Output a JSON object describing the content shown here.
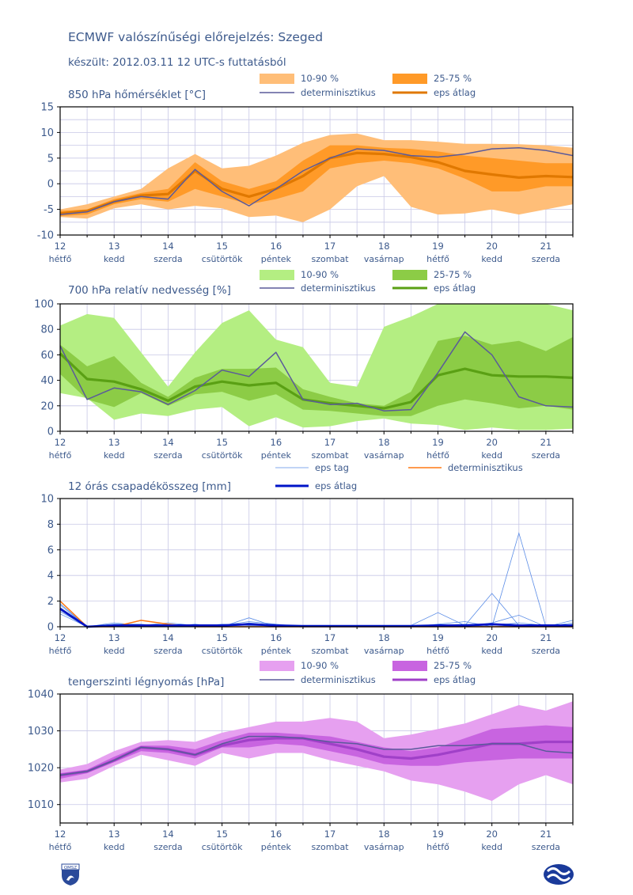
{
  "header": {
    "title": "ECMWF valószínűségi előrejelzés: Szeged",
    "subtitle": "készült: 2012.03.11 12 UTC-s futtatásból"
  },
  "colors": {
    "axis_text": "#3d5a8c",
    "grid": "#c8c8e6",
    "det_line": "#5a5a9a",
    "temp_outer": "#ffbe78",
    "temp_inner": "#ff9a28",
    "temp_mean": "#e07800",
    "hum_outer": "#b4ee82",
    "hum_inner": "#8ccc46",
    "hum_mean": "#5aa014",
    "precip_member": "#5a8ce6",
    "precip_det": "#ff7814",
    "precip_mean": "#0014c8",
    "press_outer": "#e6a0f0",
    "press_inner": "#c864e0",
    "press_mean": "#a040c8"
  },
  "x_axis": {
    "ticks": [
      "12",
      "13",
      "14",
      "15",
      "16",
      "17",
      "18",
      "19",
      "20",
      "21"
    ],
    "days": [
      "hétfő",
      "kedd",
      "szerda",
      "csütörtök",
      "péntek",
      "szombat",
      "vasárnap",
      "hétfő",
      "kedd",
      "szerda"
    ]
  },
  "chart_data": [
    {
      "type": "area",
      "title": "850 hPa hőmérséklet [°C]",
      "ylim": [
        -10,
        15
      ],
      "yticks": [
        -10,
        -5,
        0,
        5,
        10,
        15
      ],
      "grid": true,
      "legend": {
        "outer": "10-90 %",
        "inner": "25-75 %",
        "det": "determinisztikus",
        "mean": "eps átlag"
      },
      "x": [
        12,
        12.5,
        13,
        13.5,
        14,
        14.5,
        15,
        15.5,
        16,
        16.5,
        17,
        17.5,
        18,
        18.5,
        19,
        19.5,
        20,
        20.5,
        21,
        21.5
      ],
      "p10": [
        -6.5,
        -6.8,
        -4.8,
        -4.0,
        -5.0,
        -4.3,
        -4.8,
        -6.5,
        -6.2,
        -7.5,
        -5.0,
        -0.5,
        1.5,
        -4.5,
        -6.0,
        -5.8,
        -5.0,
        -6.0,
        -5.0,
        -4.0
      ],
      "p90": [
        -5.0,
        -4.0,
        -2.5,
        -1.0,
        3.0,
        5.8,
        3.0,
        3.5,
        5.5,
        8.0,
        9.5,
        9.8,
        8.5,
        8.5,
        8.2,
        7.8,
        7.8,
        7.7,
        7.5,
        7.0
      ],
      "p25": [
        -6.3,
        -6.0,
        -4.0,
        -3.0,
        -3.5,
        -1.0,
        -2.5,
        -4.0,
        -3.0,
        -1.5,
        3.0,
        4.0,
        4.5,
        4.0,
        3.0,
        1.0,
        -1.5,
        -1.5,
        -0.5,
        -0.5
      ],
      "p75": [
        -5.3,
        -5.0,
        -3.0,
        -1.8,
        -1.0,
        4.2,
        0.5,
        -1.0,
        0.5,
        4.5,
        7.5,
        7.5,
        7.0,
        6.8,
        6.3,
        5.5,
        5.0,
        4.5,
        4.0,
        4.0
      ],
      "det": [
        -6.0,
        -5.5,
        -3.5,
        -2.5,
        -3.0,
        2.8,
        -1.5,
        -4.3,
        -1.0,
        2.5,
        5.0,
        6.8,
        6.5,
        5.5,
        5.2,
        5.8,
        6.8,
        7.0,
        6.5,
        5.5
      ],
      "mean": [
        -5.8,
        -5.3,
        -3.5,
        -2.3,
        -2.0,
        2.5,
        -1.0,
        -2.5,
        -1.0,
        1.5,
        5.0,
        6.0,
        5.8,
        5.2,
        4.2,
        2.5,
        1.8,
        1.2,
        1.5,
        1.3
      ]
    },
    {
      "type": "area",
      "title": "700 hPa relatív nedvesség [%]",
      "ylim": [
        0,
        100
      ],
      "yticks": [
        0,
        20,
        40,
        60,
        80,
        100
      ],
      "grid": true,
      "legend": {
        "outer": "10-90 %",
        "inner": "25-75 %",
        "det": "determinisztikus",
        "mean": "eps átlag"
      },
      "x": [
        12,
        12.5,
        13,
        13.5,
        14,
        14.5,
        15,
        15.5,
        16,
        16.5,
        17,
        17.5,
        18,
        18.5,
        19,
        19.5,
        20,
        20.5,
        21,
        21.5
      ],
      "p10": [
        30,
        26,
        9,
        14,
        12,
        17,
        19,
        4,
        11,
        3,
        4,
        8,
        10,
        6,
        5,
        1,
        3,
        1,
        1,
        2
      ],
      "p90": [
        83,
        92,
        89,
        62,
        35,
        62,
        85,
        95,
        72,
        66,
        38,
        35,
        82,
        90,
        100,
        100,
        100,
        100,
        100,
        95
      ],
      "p25": [
        45,
        25,
        19,
        30,
        20,
        29,
        31,
        24,
        29,
        17,
        16,
        14,
        12,
        12,
        20,
        25,
        22,
        18,
        20,
        17
      ],
      "p75": [
        68,
        51,
        59,
        38,
        27,
        42,
        49,
        49,
        50,
        33,
        27,
        22,
        20,
        31,
        71,
        75,
        68,
        71,
        63,
        74
      ],
      "det": [
        67,
        25,
        34,
        31,
        21,
        32,
        48,
        43,
        62,
        25,
        21,
        22,
        16,
        17,
        46,
        78,
        60,
        27,
        20,
        19
      ],
      "mean": [
        61,
        41,
        39,
        33,
        24,
        35,
        39,
        36,
        38,
        25,
        22,
        20,
        18,
        23,
        44,
        49,
        44,
        43,
        43,
        42
      ]
    },
    {
      "type": "line",
      "title": "12 órás csapadékösszeg [mm]",
      "ylim": [
        0,
        10
      ],
      "yticks": [
        0,
        2,
        4,
        6,
        8,
        10
      ],
      "grid": true,
      "legend": {
        "member": "eps tag",
        "det": "determinisztikus",
        "mean": "eps átlag"
      },
      "x": [
        12,
        12.5,
        13,
        13.5,
        14,
        14.5,
        15,
        15.5,
        16,
        16.5,
        17,
        17.5,
        18,
        18.5,
        19,
        19.5,
        20,
        20.5,
        21,
        21.5
      ],
      "members": [
        [
          1.8,
          0,
          0.3,
          0.1,
          0.3,
          0.1,
          0,
          0.7,
          0,
          0,
          0,
          0,
          0,
          0.1,
          1.1,
          0.1,
          2.6,
          0.1,
          0,
          0.5
        ],
        [
          1.5,
          0,
          0.1,
          0,
          0.1,
          0,
          0.2,
          0.1,
          0.1,
          0,
          0,
          0,
          0,
          0,
          0.2,
          0.4,
          0,
          7.3,
          0,
          0
        ],
        [
          1.2,
          0,
          0.2,
          0.2,
          0,
          0.1,
          0.1,
          0.4,
          0.2,
          0,
          0,
          0,
          0,
          0,
          0,
          0,
          0.3,
          0.9,
          0,
          0.2
        ],
        [
          1.0,
          0,
          0,
          0.1,
          0.2,
          0,
          0.1,
          0.2,
          0,
          0.1,
          0,
          0,
          0,
          0,
          0.1,
          0.2,
          0.1,
          0.3,
          0.1,
          0.1
        ],
        [
          1.7,
          0,
          0.1,
          0,
          0,
          0.2,
          0,
          0.3,
          0.1,
          0,
          0.1,
          0,
          0,
          0,
          0,
          0.1,
          0,
          0.1,
          0,
          0.3
        ]
      ],
      "det": [
        2.0,
        0,
        0,
        0.5,
        0.2,
        0,
        0,
        0,
        0,
        0,
        0,
        0,
        0,
        0,
        0,
        0,
        0,
        0,
        0,
        0
      ],
      "mean": [
        1.4,
        0,
        0.1,
        0.1,
        0.1,
        0.1,
        0.1,
        0.2,
        0.1,
        0.05,
        0.05,
        0.05,
        0.05,
        0.05,
        0.1,
        0.1,
        0.2,
        0.1,
        0.1,
        0.1
      ]
    },
    {
      "type": "area",
      "title": "tengerszinti légnyomás [hPa]",
      "ylim": [
        1005,
        1040
      ],
      "yticks": [
        1010,
        1020,
        1030,
        1040
      ],
      "grid": true,
      "legend": {
        "outer": "10-90 %",
        "inner": "25-75 %",
        "det": "determinisztikus",
        "mean": "eps átlag"
      },
      "x": [
        12,
        12.5,
        13,
        13.5,
        14,
        14.5,
        15,
        15.5,
        16,
        16.5,
        17,
        17.5,
        18,
        18.5,
        19,
        19.5,
        20,
        20.5,
        21,
        21.5
      ],
      "p10": [
        1016,
        1017,
        1020.5,
        1023.5,
        1022,
        1020.5,
        1024,
        1022.5,
        1024,
        1024,
        1022,
        1020.5,
        1019,
        1016.5,
        1015.5,
        1013.5,
        1011,
        1015.5,
        1018,
        1015.5
      ],
      "p90": [
        1019.5,
        1021,
        1024.5,
        1027,
        1027.5,
        1027,
        1029.5,
        1031,
        1032.5,
        1032.5,
        1033.5,
        1032.5,
        1028,
        1029,
        1030.5,
        1032,
        1034.5,
        1037,
        1035.5,
        1038
      ],
      "p25": [
        1017,
        1018.5,
        1021.5,
        1024.5,
        1024,
        1022.5,
        1025.5,
        1025.5,
        1026.5,
        1026,
        1024.5,
        1023,
        1021,
        1020.5,
        1020.5,
        1021.5,
        1022,
        1022.5,
        1022.5,
        1022.5
      ],
      "p75": [
        1018.5,
        1019.5,
        1023,
        1026,
        1026,
        1025,
        1027.5,
        1029.5,
        1029.5,
        1029,
        1028.5,
        1027,
        1025.5,
        1024.5,
        1025.5,
        1028,
        1030.5,
        1031,
        1031.5,
        1031
      ],
      "det": [
        1018,
        1019,
        1022,
        1025.5,
        1025,
        1023.5,
        1026.5,
        1028.5,
        1028.5,
        1028,
        1027,
        1026.5,
        1025,
        1025,
        1026,
        1026,
        1026.5,
        1026.5,
        1024.5,
        1024
      ],
      "mean": [
        1018,
        1019,
        1022,
        1025.5,
        1025,
        1023.5,
        1026,
        1027.5,
        1028,
        1028,
        1026.5,
        1025,
        1023,
        1022.5,
        1023.5,
        1025,
        1026.5,
        1026.5,
        1027,
        1027
      ]
    }
  ]
}
